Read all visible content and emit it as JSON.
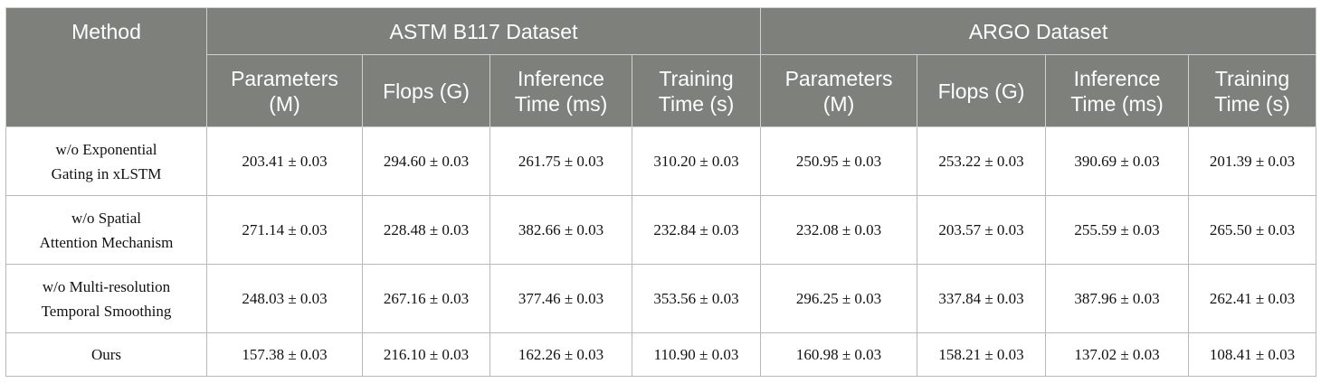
{
  "table": {
    "method_header": "Method",
    "groups": [
      {
        "title": "ASTM B117 Dataset",
        "columns": [
          [
            "Parameters",
            "(M)"
          ],
          [
            "Flops (G)"
          ],
          [
            "Inference",
            "Time (ms)"
          ],
          [
            "Training",
            "Time (s)"
          ]
        ]
      },
      {
        "title": "ARGO Dataset",
        "columns": [
          [
            "Parameters",
            "(M)"
          ],
          [
            "Flops (G)"
          ],
          [
            "Inference",
            "Time (ms)"
          ],
          [
            "Training",
            "Time (s)"
          ]
        ]
      }
    ],
    "rows": [
      {
        "method": [
          "w/o Exponential",
          "Gating in xLSTM"
        ],
        "values": [
          "203.41 ± 0.03",
          "294.60 ± 0.03",
          "261.75 ± 0.03",
          "310.20 ± 0.03",
          "250.95 ± 0.03",
          "253.22 ± 0.03",
          "390.69 ± 0.03",
          "201.39 ± 0.03"
        ]
      },
      {
        "method": [
          "w/o Spatial",
          "Attention Mechanism"
        ],
        "values": [
          "271.14 ± 0.03",
          "228.48 ± 0.03",
          "382.66 ± 0.03",
          "232.84 ± 0.03",
          "232.08 ± 0.03",
          "203.57 ± 0.03",
          "255.59 ± 0.03",
          "265.50 ± 0.03"
        ]
      },
      {
        "method": [
          "w/o Multi-resolution",
          "Temporal Smoothing"
        ],
        "values": [
          "248.03 ± 0.03",
          "267.16 ± 0.03",
          "377.46 ± 0.03",
          "353.56 ± 0.03",
          "296.25 ± 0.03",
          "337.84 ± 0.03",
          "387.96 ± 0.03",
          "262.41 ± 0.03"
        ]
      },
      {
        "method": [
          "Ours"
        ],
        "values": [
          "157.38 ± 0.03",
          "216.10 ± 0.03",
          "162.26 ± 0.03",
          "110.90 ± 0.03",
          "160.98 ± 0.03",
          "158.21 ± 0.03",
          "137.02 ± 0.03",
          "108.41 ± 0.03"
        ]
      }
    ]
  }
}
